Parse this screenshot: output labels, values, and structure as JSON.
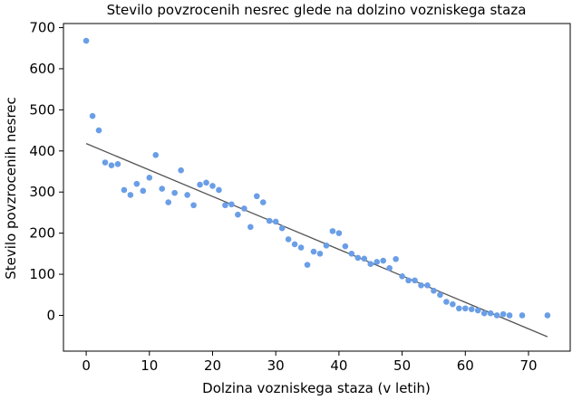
{
  "chart_data": {
    "type": "scatter",
    "title": "Stevilo povzrocenih nesrec glede na dolzino vozniskega staza",
    "xlabel": "Dolzina vozniskega staza (v letih)",
    "ylabel": "Stevilo povzrocenih nesrec",
    "xlim": [
      -3.6,
      76.6
    ],
    "ylim": [
      -87,
      710
    ],
    "xticks": [
      0,
      10,
      20,
      30,
      40,
      50,
      60,
      70
    ],
    "yticks": [
      0,
      100,
      200,
      300,
      400,
      500,
      600,
      700
    ],
    "grid": false,
    "colors": {
      "points": "#6a9ee6",
      "line": "#555555"
    },
    "series": [
      {
        "x": [
          0,
          1,
          2,
          3,
          4,
          5,
          6,
          7,
          8,
          9,
          10,
          11,
          12,
          13,
          14,
          15,
          16,
          17,
          18,
          19,
          20,
          21,
          22,
          23,
          24,
          25,
          26,
          27,
          28,
          29,
          30,
          31,
          32,
          33,
          34,
          35,
          36,
          37,
          38,
          39,
          40,
          41,
          42,
          43,
          44,
          45,
          46,
          47,
          48,
          49,
          50,
          51,
          52,
          53,
          54,
          55,
          56,
          57,
          58,
          59,
          60,
          61,
          62,
          63,
          64,
          65,
          66,
          67,
          69,
          73
        ],
        "y": [
          668,
          485,
          450,
          372,
          365,
          368,
          305,
          293,
          320,
          303,
          335,
          390,
          308,
          275,
          298,
          353,
          293,
          268,
          318,
          323,
          315,
          305,
          268,
          270,
          245,
          260,
          215,
          290,
          275,
          230,
          228,
          212,
          185,
          173,
          165,
          123,
          155,
          150,
          170,
          205,
          200,
          168,
          150,
          140,
          138,
          125,
          130,
          133,
          115,
          137,
          95,
          85,
          85,
          73,
          73,
          60,
          50,
          33,
          27,
          17,
          17,
          15,
          12,
          5,
          5,
          0,
          3,
          0,
          0,
          0
        ]
      }
    ],
    "trendline": {
      "x": [
        0,
        73
      ],
      "y": [
        418,
        -52
      ]
    }
  }
}
